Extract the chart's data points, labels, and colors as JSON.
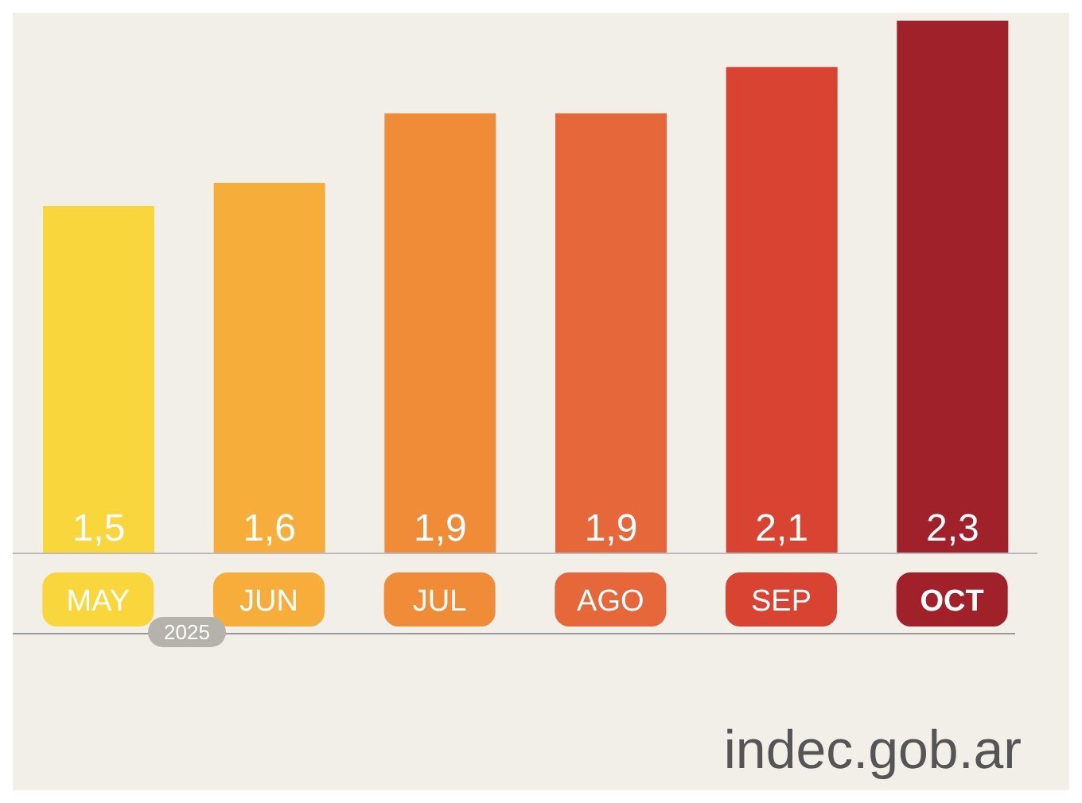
{
  "chart_data": {
    "type": "bar",
    "categories": [
      "MAY",
      "JUN",
      "JUL",
      "AGO",
      "SEP",
      "OCT"
    ],
    "values": [
      1.5,
      1.6,
      1.9,
      1.9,
      2.1,
      2.3
    ],
    "value_labels": [
      "1,5",
      "1,6",
      "1,9",
      "1,9",
      "2,1",
      "2,3"
    ],
    "colors": [
      "#f9d63c",
      "#f6ad3a",
      "#f08c38",
      "#e5673a",
      "#d84332",
      "#a0212a"
    ],
    "tick_labels": "x",
    "annotations": [
      "2025",
      "indec.gob.ar"
    ]
  }
}
